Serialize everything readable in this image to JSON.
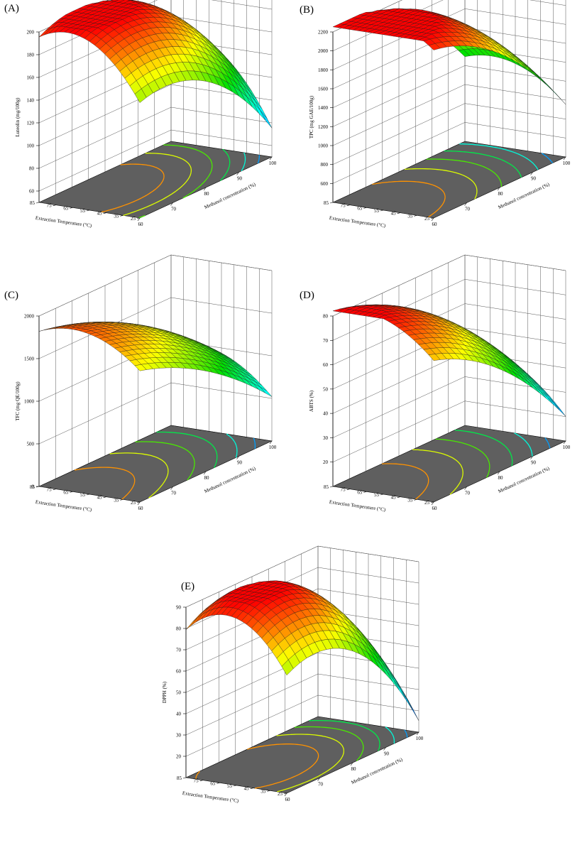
{
  "figure": {
    "x_axis_label": "Methanol concentration (%)",
    "y_axis_label": "Extraction Temperature (°C)",
    "x_ticks": [
      "60",
      "70",
      "80",
      "90",
      "100"
    ],
    "y_ticks": [
      "25",
      "35",
      "45",
      "55",
      "65",
      "75",
      "85"
    ],
    "colormap": [
      "#0020ff",
      "#00ffff",
      "#00e000",
      "#ffff00",
      "#ff0000"
    ],
    "floor_color": "#5f5f5f"
  },
  "chart_data": [
    {
      "panel_label": "(A)",
      "type": "surface",
      "zlabel": "Luteolin (mg/100g)",
      "z_ticks": [
        "60",
        "80",
        "100",
        "120",
        "140",
        "160",
        "180",
        "200"
      ],
      "zlim": [
        50,
        200
      ],
      "x": [
        60,
        100
      ],
      "y": [
        25,
        85
      ],
      "model": {
        "b0": 192,
        "bx": -32,
        "by": 28,
        "bxx": -30,
        "byy": -25,
        "bxy": 6
      },
      "contour_count": 6
    },
    {
      "panel_label": "(B)",
      "type": "surface",
      "zlabel": "TPC (mg GAE/100g)",
      "z_ticks": [
        "600",
        "800",
        "1000",
        "1200",
        "1400",
        "1600",
        "1800",
        "2000",
        "2200"
      ],
      "zlim": [
        400,
        2200
      ],
      "x": [
        60,
        100
      ],
      "y": [
        25,
        85
      ],
      "model": {
        "b0": 2060,
        "bx": -560,
        "by": 120,
        "bxx": -250,
        "byy": -180,
        "bxy": 50
      },
      "contour_count": 6
    },
    {
      "panel_label": "(C)",
      "type": "surface",
      "zlabel": "TFC (mg QE/100g)",
      "z_ticks": [
        "0",
        "500",
        "1000",
        "1500",
        "2000"
      ],
      "zlim": [
        0,
        2000
      ],
      "x": [
        60,
        100
      ],
      "y": [
        25,
        85
      ],
      "model": {
        "b0": 1500,
        "bx": -470,
        "by": 180,
        "bxx": -150,
        "byy": -200,
        "bxy": 40
      },
      "contour_count": 6
    },
    {
      "panel_label": "(D)",
      "type": "surface",
      "zlabel": "ABTS (%)",
      "z_ticks": [
        "20",
        "30",
        "40",
        "50",
        "60",
        "70",
        "80"
      ],
      "zlim": [
        10,
        80
      ],
      "x": [
        60,
        100
      ],
      "y": [
        25,
        85
      ],
      "model": {
        "b0": 66,
        "bx": -22,
        "by": 9,
        "bxx": -8,
        "byy": -7,
        "bxy": 2
      },
      "contour_count": 6
    },
    {
      "panel_label": "(E)",
      "type": "surface",
      "zlabel": "DPPH (%)",
      "z_ticks": [
        "20",
        "30",
        "40",
        "50",
        "60",
        "70",
        "80",
        "90"
      ],
      "zlim": [
        10,
        90
      ],
      "x": [
        60,
        100
      ],
      "y": [
        25,
        85
      ],
      "model": {
        "b0": 86,
        "bx": -22,
        "by": 10,
        "bxx": -22,
        "byy": -16,
        "bxy": 3
      },
      "contour_count": 6
    }
  ]
}
